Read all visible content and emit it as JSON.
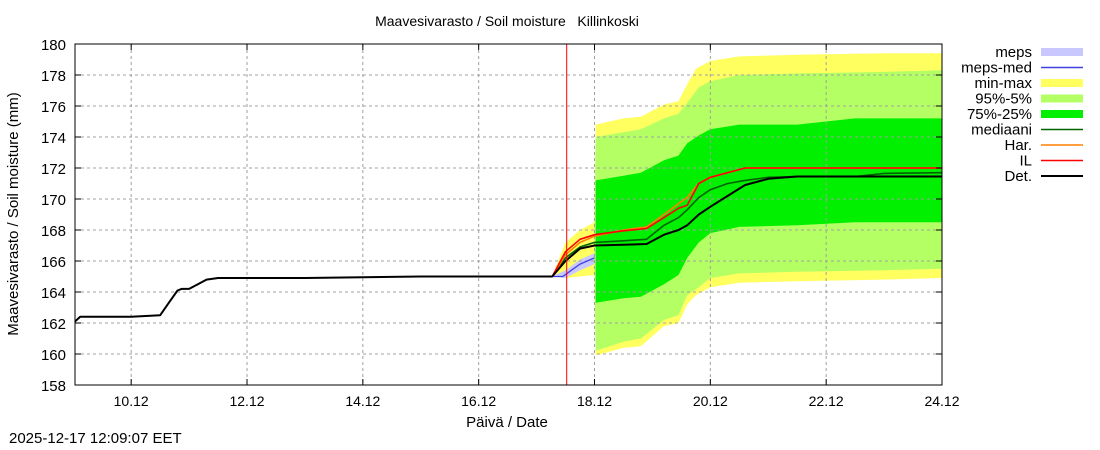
{
  "chart_data": {
    "type": "area",
    "title": "Maavesivarasto / Soil moisture   Killinkoski",
    "xlabel": "Päivä / Date",
    "ylabel": "Maavesivarasto / Soil moisture (mm)",
    "xlim": [
      9.03,
      24.0
    ],
    "ylim": [
      158,
      180
    ],
    "x_unit": "day of December",
    "xticks": [
      10,
      12,
      14,
      16,
      18,
      20,
      22,
      24
    ],
    "xtick_labels": [
      "10.12",
      "12.12",
      "14.12",
      "16.12",
      "18.12",
      "20.12",
      "22.12",
      "24.12"
    ],
    "yticks": [
      158,
      160,
      162,
      164,
      166,
      168,
      170,
      172,
      174,
      176,
      178,
      180
    ],
    "ytick_labels": [
      "158",
      "160",
      "162",
      "164",
      "166",
      "168",
      "170",
      "172",
      "174",
      "176",
      "178",
      "180"
    ],
    "grid": true,
    "legend_position": "right-outside-top",
    "now_line": {
      "x": 17.52,
      "color": "#ff0000"
    },
    "colors": {
      "meps": "#c8c8ff",
      "meps_med": "#4040e0",
      "min_max": "#ffff60",
      "p95_5": "#b4ff64",
      "p75_25": "#00f000",
      "mediaani": "#006400",
      "har": "#ff8000",
      "il": "#ff0000",
      "det": "#000000"
    },
    "legend": [
      {
        "key": "meps",
        "label": "meps",
        "kind": "band"
      },
      {
        "key": "meps_med",
        "label": "meps-med",
        "kind": "line"
      },
      {
        "key": "min_max",
        "label": "min-max",
        "kind": "band"
      },
      {
        "key": "p95_5",
        "label": "95%-5%",
        "kind": "band"
      },
      {
        "key": "p75_25",
        "label": "75%-25%",
        "kind": "band"
      },
      {
        "key": "mediaani",
        "label": "mediaani",
        "kind": "line"
      },
      {
        "key": "har",
        "label": "Har.",
        "kind": "line"
      },
      {
        "key": "il",
        "label": "IL",
        "kind": "line"
      },
      {
        "key": "det",
        "label": "Det.",
        "kind": "line"
      }
    ],
    "bands": {
      "min_max": {
        "x": [
          17.27,
          17.5,
          17.75,
          18.0,
          18.02,
          18.5,
          18.8,
          19.2,
          19.45,
          19.6,
          19.75,
          20.0,
          20.5,
          21.5,
          23.0,
          24.0
        ],
        "upper": [
          165.0,
          167.2,
          168.0,
          168.5,
          174.8,
          175.2,
          175.3,
          176.1,
          176.3,
          177.4,
          178.4,
          178.9,
          179.2,
          179.3,
          179.4,
          179.4
        ],
        "lower": [
          165.0,
          164.9,
          165.0,
          165.1,
          159.9,
          160.4,
          160.5,
          161.8,
          162.0,
          163.2,
          163.8,
          164.3,
          164.6,
          164.7,
          164.8,
          164.9
        ]
      },
      "p95_5": {
        "x": [
          18.0,
          18.02,
          18.5,
          18.8,
          19.2,
          19.45,
          19.6,
          19.8,
          20.0,
          20.5,
          21.5,
          23.0,
          24.0
        ],
        "upper": [
          168.5,
          174.0,
          174.3,
          174.5,
          175.2,
          175.5,
          176.2,
          177.2,
          177.6,
          178.0,
          178.1,
          178.2,
          178.3
        ],
        "lower": [
          165.1,
          160.2,
          160.8,
          161.0,
          162.2,
          162.5,
          163.8,
          164.3,
          164.9,
          165.2,
          165.3,
          165.4,
          165.5
        ]
      },
      "p75_25": {
        "x": [
          18.02,
          18.5,
          18.8,
          19.2,
          19.45,
          19.6,
          19.8,
          20.0,
          20.5,
          21.5,
          22.5,
          24.0
        ],
        "upper": [
          171.2,
          171.5,
          171.7,
          172.5,
          172.8,
          173.6,
          174.1,
          174.5,
          174.8,
          174.8,
          175.2,
          175.2
        ],
        "lower": [
          163.3,
          163.6,
          163.7,
          164.5,
          165.1,
          166.2,
          167.2,
          167.8,
          168.2,
          168.3,
          168.5,
          168.5
        ]
      },
      "meps": {
        "x": [
          17.27,
          17.5,
          17.75,
          18.0
        ],
        "upper": [
          165.0,
          165.4,
          166.1,
          166.5
        ],
        "lower": [
          165.0,
          164.9,
          165.4,
          165.8
        ]
      }
    },
    "series": [
      {
        "key": "det",
        "name": "Det.",
        "x": [
          9.03,
          9.12,
          9.5,
          10.0,
          10.5,
          10.65,
          10.8,
          10.87,
          11.0,
          11.2,
          11.3,
          11.5,
          12.0,
          13.0,
          14.0,
          15.0,
          16.0,
          17.0,
          17.27,
          17.5,
          17.75,
          18.0,
          18.5,
          18.9,
          19.2,
          19.45,
          19.6,
          19.8,
          20.0,
          20.3,
          20.6,
          21.0,
          21.5,
          22.5,
          23.5,
          24.0
        ],
        "y": [
          162.1,
          162.4,
          162.4,
          162.4,
          162.5,
          163.3,
          164.1,
          164.2,
          164.2,
          164.6,
          164.8,
          164.9,
          164.9,
          164.9,
          164.95,
          165.0,
          165.0,
          165.0,
          165.0,
          166.0,
          166.8,
          167.0,
          167.05,
          167.1,
          167.7,
          168.0,
          168.3,
          169.0,
          169.5,
          170.2,
          170.9,
          171.3,
          171.45,
          171.45,
          171.45,
          171.45
        ]
      },
      {
        "key": "mediaani",
        "name": "mediaani",
        "x": [
          17.27,
          17.5,
          17.75,
          18.0,
          18.5,
          18.9,
          19.2,
          19.45,
          19.6,
          19.8,
          20.0,
          20.3,
          20.6,
          21.0,
          21.5,
          22.5,
          23.0,
          24.0
        ],
        "y": [
          165.0,
          166.2,
          166.9,
          167.2,
          167.3,
          167.4,
          168.3,
          168.8,
          169.3,
          170.1,
          170.6,
          171.0,
          171.2,
          171.4,
          171.45,
          171.45,
          171.65,
          171.7
        ]
      },
      {
        "key": "har",
        "name": "Har.",
        "x": [
          17.27,
          17.5,
          17.75,
          18.0,
          18.5,
          18.9,
          19.2,
          19.45,
          19.6,
          19.8,
          20.0,
          20.4,
          20.6,
          21.0,
          22.0,
          24.0
        ],
        "y": [
          165.0,
          166.4,
          167.2,
          167.6,
          168.0,
          168.2,
          169.0,
          169.7,
          170.1,
          171.0,
          171.4,
          171.8,
          172.0,
          172.0,
          172.0,
          172.0
        ]
      },
      {
        "key": "il",
        "name": "IL",
        "x": [
          17.27,
          17.5,
          17.75,
          18.0,
          18.5,
          18.9,
          19.2,
          19.45,
          19.6,
          19.8,
          20.0,
          20.4,
          20.6,
          21.0,
          22.0,
          24.0
        ],
        "y": [
          165.0,
          166.6,
          167.4,
          167.7,
          167.95,
          168.1,
          168.8,
          169.4,
          169.6,
          171.0,
          171.4,
          171.8,
          172.0,
          172.0,
          172.0,
          172.0
        ]
      },
      {
        "key": "meps_med",
        "name": "meps-med",
        "x": [
          17.27,
          17.45,
          17.6,
          17.75,
          18.0
        ],
        "y": [
          165.0,
          165.0,
          165.4,
          165.8,
          166.2
        ]
      }
    ]
  },
  "footer": {
    "timestamp": "2025-12-17 12:09:07 EET"
  }
}
